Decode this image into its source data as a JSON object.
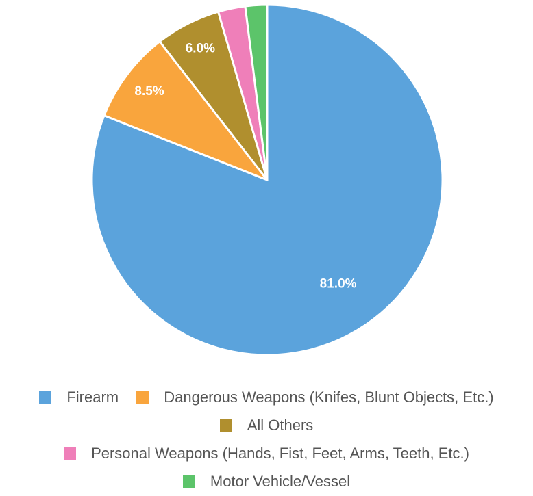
{
  "chart_data": {
    "type": "pie",
    "series": [
      {
        "name": "Firearm",
        "value": 81.0,
        "label": "81.0%",
        "color": "#5ba3dc"
      },
      {
        "name": "Dangerous Weapons (Knifes, Blunt Objects, Etc.)",
        "value": 8.5,
        "label": "8.5%",
        "color": "#f9a53d"
      },
      {
        "name": "All Others",
        "value": 6.0,
        "label": "6.0%",
        "color": "#b08f2e"
      },
      {
        "name": "Personal Weapons (Hands, Fist, Feet, Arms, Teeth, Etc.)",
        "value": 2.5,
        "label": "",
        "color": "#ef7fb9"
      },
      {
        "name": "Motor Vehicle/Vessel",
        "value": 2.0,
        "label": "",
        "color": "#5cc46a"
      }
    ],
    "legend_position": "bottom",
    "slice_label_color": "#ffffff",
    "slice_border_color": "#ffffff"
  }
}
